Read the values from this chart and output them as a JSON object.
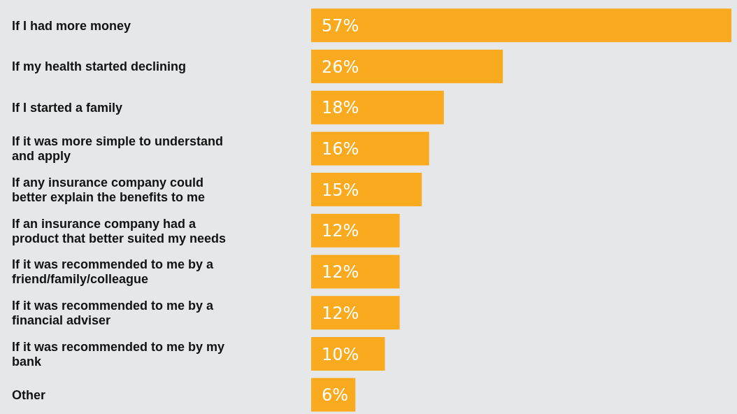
{
  "chart_data": {
    "type": "bar",
    "orientation": "horizontal",
    "categories": [
      "If I had more money",
      "If my health started declining",
      "If I started a family",
      "If it was more simple to understand and apply",
      "If any insurance company could better explain the benefits to me",
      "If an insurance company had a product that better suited my needs",
      "If it was recommended to me by a friend/family/colleague",
      "If it was recommended to me by a financial adviser",
      "If it was recommended to me by my bank",
      "Other"
    ],
    "values": [
      57,
      26,
      18,
      16,
      15,
      12,
      12,
      12,
      10,
      6
    ],
    "value_labels": [
      "57%",
      "26%",
      "18%",
      "16%",
      "15%",
      "12%",
      "12%",
      "12%",
      "10%",
      "6%"
    ],
    "color": "#f9aa1f",
    "grid": false,
    "legend": false
  }
}
